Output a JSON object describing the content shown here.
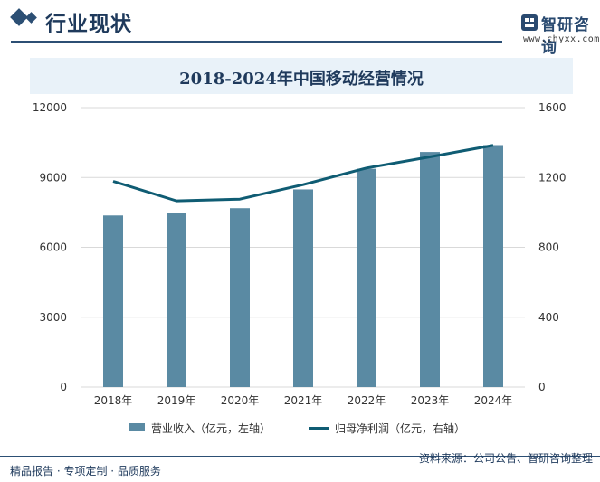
{
  "header": {
    "section_title": "行业现状",
    "logo_text": "智研咨询",
    "logo_url": "www.chyxx.com"
  },
  "chart_data": {
    "type": "bar",
    "title": "2018-2024年中国移动经营情况",
    "categories": [
      "2018年",
      "2019年",
      "2020年",
      "2021年",
      "2022年",
      "2023年",
      "2024年"
    ],
    "series": [
      {
        "name": "营业收入（亿元，左轴）",
        "type": "bar",
        "axis": "left",
        "values": [
          7368,
          7459,
          7681,
          8487,
          9373,
          10093,
          10389
        ]
      },
      {
        "name": "归母净利润（亿元，右轴）",
        "type": "line",
        "axis": "right",
        "values": [
          1178,
          1066,
          1076,
          1159,
          1254,
          1318,
          1384
        ]
      }
    ],
    "y_left": {
      "ylim": [
        0,
        12000
      ],
      "ticks": [
        "0",
        "3000",
        "6000",
        "9000",
        "12000"
      ]
    },
    "y_right": {
      "ylim": [
        0,
        1600
      ],
      "ticks": [
        "0",
        "400",
        "800",
        "1200",
        "1600"
      ]
    },
    "legend_position": "bottom",
    "colors": {
      "bar": "#5a8aa3",
      "line": "#0f5c73"
    }
  },
  "footer": {
    "left_text": "精品报告 · 专项定制 · 品质服务",
    "right_text": "资料来源：公司公告、智研咨询整理"
  }
}
